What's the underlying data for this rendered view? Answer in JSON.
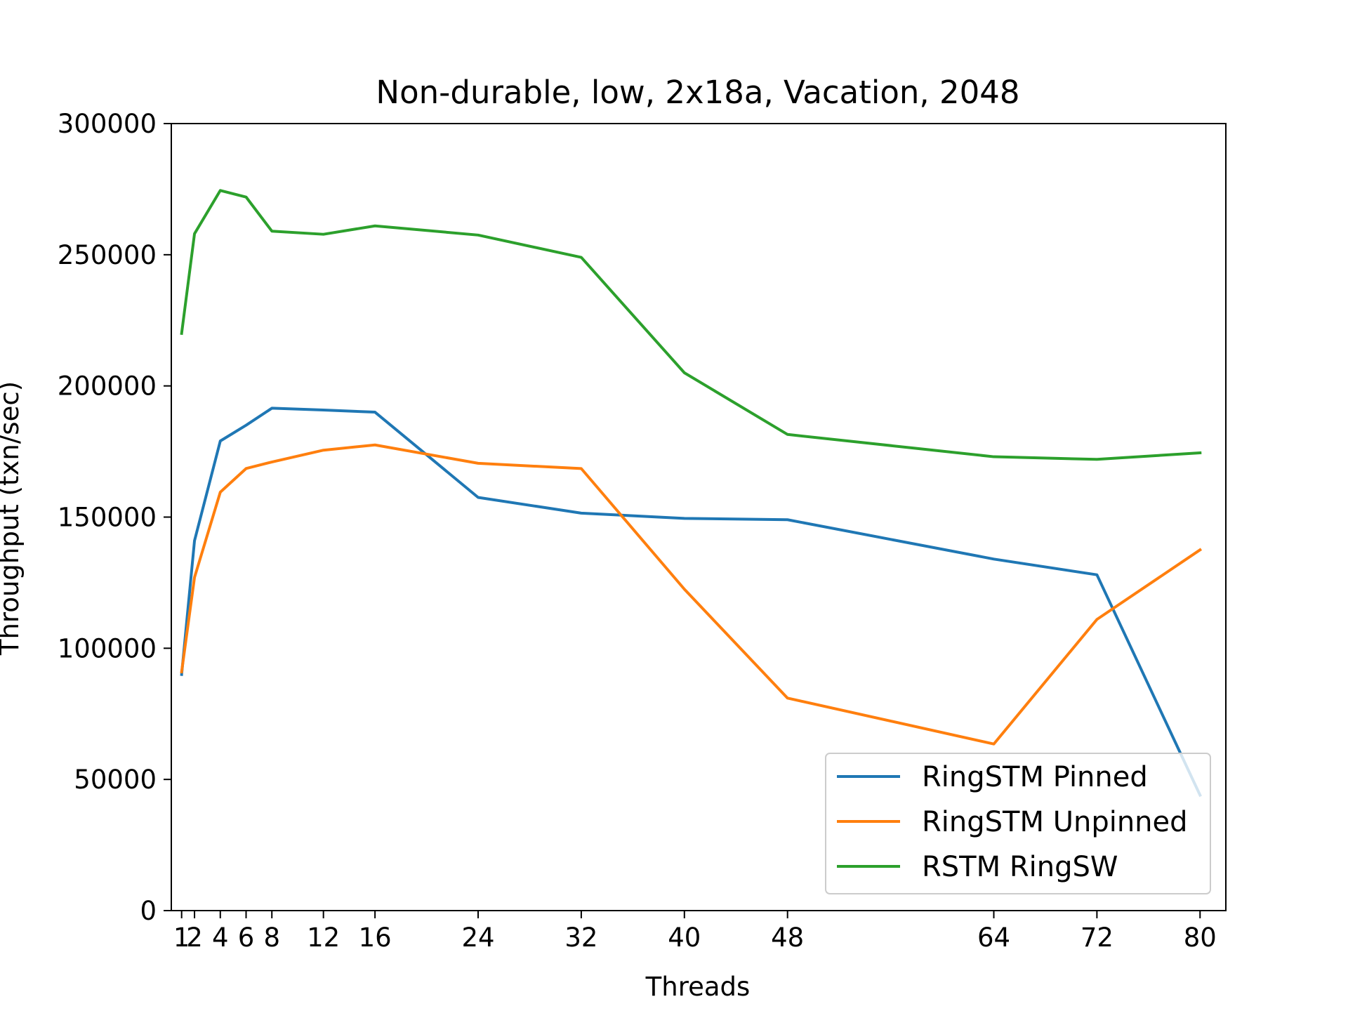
{
  "chart_data": {
    "type": "line",
    "title": "Non-durable, low, 2x18a, Vacation, 2048",
    "xlabel": "Threads",
    "ylabel": "Throughput (txn/sec)",
    "x": [
      1,
      2,
      4,
      6,
      8,
      12,
      16,
      24,
      32,
      40,
      48,
      64,
      72,
      80
    ],
    "xticks": [
      1,
      2,
      4,
      6,
      8,
      12,
      16,
      24,
      32,
      40,
      48,
      64,
      72,
      80
    ],
    "xtick_labels": [
      "1",
      "2",
      "4",
      "6",
      "8",
      "12",
      "16",
      "24",
      "32",
      "40",
      "48",
      "64",
      "72",
      "80"
    ],
    "yticks": [
      0,
      50000,
      100000,
      150000,
      200000,
      250000,
      300000
    ],
    "ytick_labels": [
      "0",
      "50000",
      "100000",
      "150000",
      "200000",
      "250000",
      "300000"
    ],
    "xlim": [
      0.2,
      82.0
    ],
    "ylim": [
      0,
      300000
    ],
    "grid": false,
    "legend_position": "lower-right",
    "series": [
      {
        "name": "RingSTM Pinned",
        "color": "#1f77b4",
        "values": [
          90000,
          141000,
          179000,
          185000,
          191500,
          190800,
          190000,
          157500,
          151500,
          149500,
          149000,
          134000,
          128000,
          44000
        ]
      },
      {
        "name": "RingSTM Unpinned",
        "color": "#ff7f0e",
        "values": [
          91000,
          127000,
          159500,
          168500,
          171000,
          175500,
          177500,
          170500,
          168500,
          122500,
          81000,
          63500,
          111000,
          137500
        ]
      },
      {
        "name": "RSTM RingSW",
        "color": "#2ca02c",
        "values": [
          220000,
          258000,
          274500,
          272000,
          259000,
          257800,
          261000,
          257500,
          249000,
          205000,
          181500,
          173000,
          172000,
          174500
        ]
      }
    ]
  }
}
